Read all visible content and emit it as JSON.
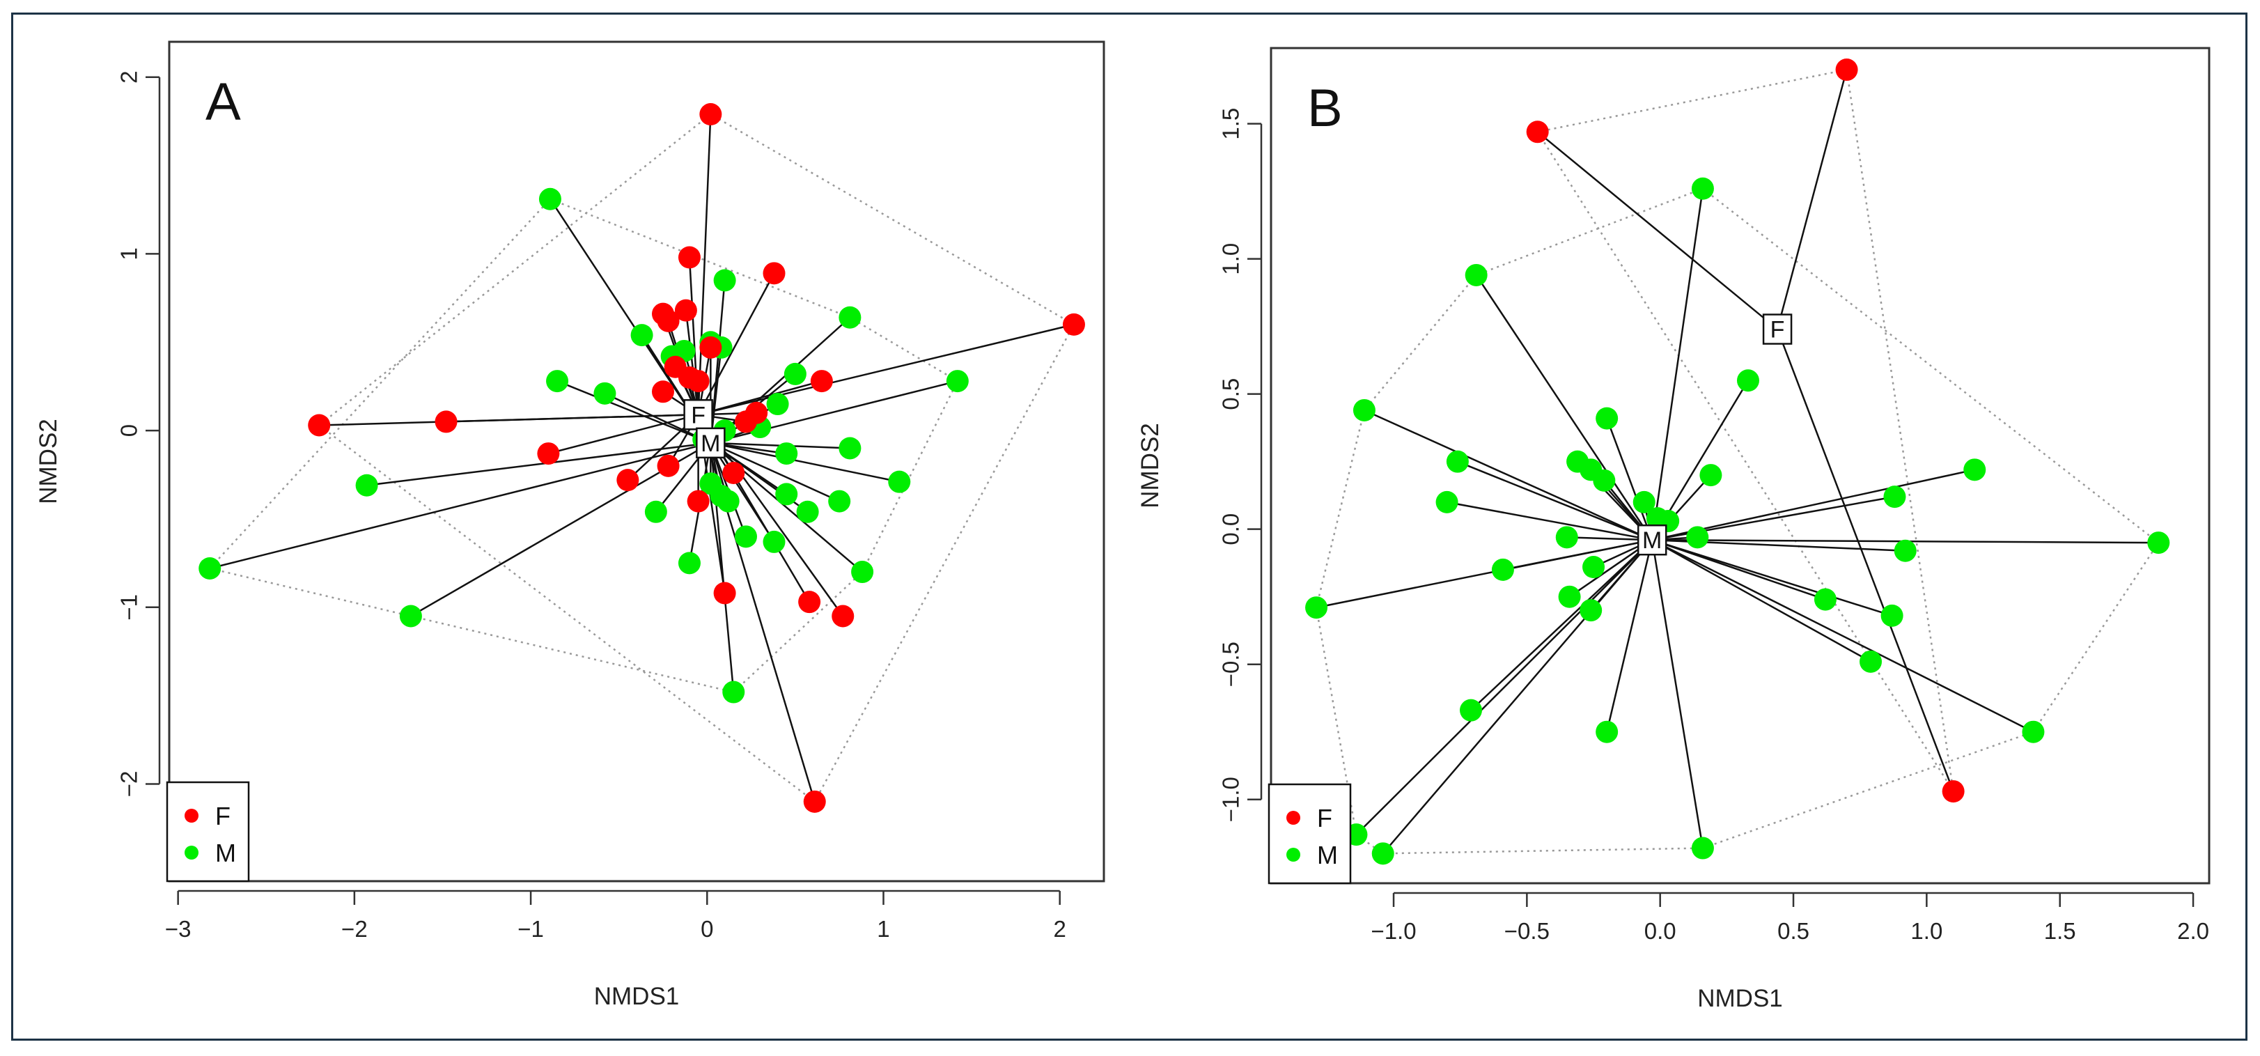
{
  "colors": {
    "F": "#ff0000",
    "M": "#00ee00",
    "axis": "#333333",
    "spider": "#111111",
    "hull": "#999999"
  },
  "chart_data": [
    {
      "type": "scatter",
      "panel_label": "A",
      "xlabel": "NMDS1",
      "ylabel": "NMDS2",
      "xlim": [
        -3.05,
        2.25
      ],
      "ylim": [
        -2.55,
        2.2
      ],
      "xticks": [
        -3,
        -2,
        -1,
        0,
        1,
        2
      ],
      "yticks": [
        -2,
        -1,
        0,
        1,
        2
      ],
      "xtick_labels": [
        "−3",
        "−2",
        "−1",
        "0",
        "1",
        "2"
      ],
      "ytick_labels": [
        "−2",
        "−1",
        "0",
        "1",
        "2"
      ],
      "legend": {
        "position": "bottom-left",
        "entries": [
          "F",
          "M"
        ]
      },
      "centroids": [
        {
          "group": "F",
          "label": "F",
          "x": -0.05,
          "y": 0.09
        },
        {
          "group": "M",
          "label": "M",
          "x": 0.02,
          "y": -0.07
        }
      ],
      "series": [
        {
          "name": "F",
          "points": [
            [
              0.02,
              1.79
            ],
            [
              -0.1,
              0.98
            ],
            [
              0.38,
              0.89
            ],
            [
              -0.25,
              0.66
            ],
            [
              -0.12,
              0.68
            ],
            [
              -0.22,
              0.62
            ],
            [
              0.02,
              0.47
            ],
            [
              -0.18,
              0.36
            ],
            [
              -0.1,
              0.3
            ],
            [
              -0.05,
              0.28
            ],
            [
              -0.25,
              0.22
            ],
            [
              0.65,
              0.28
            ],
            [
              2.08,
              0.6
            ],
            [
              -2.2,
              0.03
            ],
            [
              -1.48,
              0.05
            ],
            [
              0.28,
              0.1
            ],
            [
              0.22,
              0.05
            ],
            [
              -0.9,
              -0.13
            ],
            [
              -0.45,
              -0.28
            ],
            [
              -0.22,
              -0.2
            ],
            [
              0.15,
              -0.24
            ],
            [
              -0.05,
              -0.4
            ],
            [
              0.1,
              -0.92
            ],
            [
              0.58,
              -0.97
            ],
            [
              0.77,
              -1.05
            ],
            [
              0.61,
              -2.1
            ]
          ]
        },
        {
          "name": "M",
          "points": [
            [
              -0.89,
              1.31
            ],
            [
              0.1,
              0.85
            ],
            [
              0.81,
              0.64
            ],
            [
              -0.37,
              0.54
            ],
            [
              -0.2,
              0.42
            ],
            [
              -0.13,
              0.45
            ],
            [
              0.02,
              0.5
            ],
            [
              0.08,
              0.47
            ],
            [
              0.5,
              0.32
            ],
            [
              1.42,
              0.28
            ],
            [
              -0.85,
              0.28
            ],
            [
              -0.58,
              0.21
            ],
            [
              0.4,
              0.15
            ],
            [
              0.3,
              0.02
            ],
            [
              0.1,
              0.0
            ],
            [
              -0.02,
              -0.05
            ],
            [
              0.45,
              -0.13
            ],
            [
              0.81,
              -0.1
            ],
            [
              -1.93,
              -0.31
            ],
            [
              1.09,
              -0.29
            ],
            [
              0.45,
              -0.36
            ],
            [
              0.57,
              -0.46
            ],
            [
              0.75,
              -0.4
            ],
            [
              -0.29,
              -0.46
            ],
            [
              0.08,
              -0.37
            ],
            [
              0.02,
              -0.3
            ],
            [
              0.12,
              -0.4
            ],
            [
              0.22,
              -0.6
            ],
            [
              0.38,
              -0.63
            ],
            [
              -0.1,
              -0.75
            ],
            [
              0.88,
              -0.8
            ],
            [
              -2.82,
              -0.78
            ],
            [
              -1.68,
              -1.05
            ],
            [
              0.15,
              -1.48
            ]
          ]
        }
      ]
    },
    {
      "type": "scatter",
      "panel_label": "B",
      "xlabel": "NMDS1",
      "ylabel": "NMDS2",
      "xlim": [
        -1.46,
        2.06
      ],
      "ylim": [
        -1.31,
        1.78
      ],
      "xticks": [
        -1.0,
        -0.5,
        0.0,
        0.5,
        1.0,
        1.5,
        2.0
      ],
      "yticks": [
        -1.0,
        -0.5,
        0.0,
        0.5,
        1.0,
        1.5
      ],
      "xtick_labels": [
        "−1.0",
        "−0.5",
        "0.0",
        "0.5",
        "1.0",
        "1.5",
        "2.0"
      ],
      "ytick_labels": [
        "−1.0",
        "−0.5",
        "0.0",
        "0.5",
        "1.0",
        "1.5"
      ],
      "legend": {
        "position": "bottom-left",
        "entries": [
          "F",
          "M"
        ]
      },
      "centroids": [
        {
          "group": "F",
          "label": "F",
          "x": 0.44,
          "y": 0.74
        },
        {
          "group": "M",
          "label": "M",
          "x": -0.03,
          "y": -0.04
        }
      ],
      "series": [
        {
          "name": "F",
          "points": [
            [
              0.7,
              1.7
            ],
            [
              -0.46,
              1.47
            ],
            [
              1.1,
              -0.97
            ]
          ]
        },
        {
          "name": "M",
          "points": [
            [
              0.16,
              1.26
            ],
            [
              -0.69,
              0.94
            ],
            [
              0.33,
              0.55
            ],
            [
              -1.11,
              0.44
            ],
            [
              -0.2,
              0.41
            ],
            [
              0.19,
              0.2
            ],
            [
              1.18,
              0.22
            ],
            [
              -0.76,
              0.25
            ],
            [
              -0.31,
              0.25
            ],
            [
              -0.26,
              0.22
            ],
            [
              -0.21,
              0.18
            ],
            [
              -0.8,
              0.1
            ],
            [
              0.88,
              0.12
            ],
            [
              -0.06,
              0.1
            ],
            [
              -0.01,
              0.04
            ],
            [
              0.03,
              0.03
            ],
            [
              0.14,
              -0.03
            ],
            [
              -0.35,
              -0.03
            ],
            [
              0.92,
              -0.08
            ],
            [
              1.87,
              -0.05
            ],
            [
              -0.59,
              -0.15
            ],
            [
              -0.25,
              -0.14
            ],
            [
              -0.34,
              -0.25
            ],
            [
              -0.26,
              -0.3
            ],
            [
              0.62,
              -0.26
            ],
            [
              0.87,
              -0.32
            ],
            [
              -1.29,
              -0.29
            ],
            [
              0.79,
              -0.49
            ],
            [
              -0.71,
              -0.67
            ],
            [
              -0.2,
              -0.75
            ],
            [
              1.4,
              -0.75
            ],
            [
              -1.14,
              -1.13
            ],
            [
              -1.04,
              -1.2
            ],
            [
              0.16,
              -1.18
            ]
          ]
        }
      ]
    }
  ]
}
